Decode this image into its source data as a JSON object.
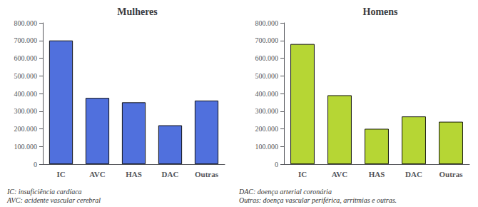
{
  "chart_data": [
    {
      "type": "bar",
      "title": "Mulheres",
      "categories": [
        "IC",
        "AVC",
        "HAS",
        "DAC",
        "Outras"
      ],
      "values": [
        700000,
        375000,
        350000,
        220000,
        360000
      ],
      "ylim": [
        0,
        800000
      ],
      "yticks": [
        0,
        {
          "value": 100000,
          "label": "100.000"
        },
        {
          "value": 200000,
          "label": "200.000"
        },
        {
          "value": 300000,
          "label": "300.000"
        },
        {
          "value": 400000,
          "label": "400.000"
        },
        {
          "value": 500000,
          "label": "500.000"
        },
        {
          "value": 600000,
          "label": "600.000"
        },
        {
          "value": 700000,
          "label": "700.000"
        },
        {
          "value": 800000,
          "label": "800.000"
        }
      ],
      "grid": false,
      "annotations": [
        "IC: insuficiência cardíaca\nAVC: acidente vascular cerebral"
      ]
    },
    {
      "type": "bar",
      "title": "Homens",
      "categories": [
        "IC",
        "AVC",
        "HAS",
        "DAC",
        "Outras"
      ],
      "values": [
        680000,
        390000,
        200000,
        270000,
        240000
      ],
      "ylim": [
        0,
        800000
      ],
      "yticks": [
        0,
        {
          "value": 100000,
          "label": "100.000"
        },
        {
          "value": 200000,
          "label": "200.000"
        },
        {
          "value": 300000,
          "label": "300.000"
        },
        {
          "value": 400000,
          "label": "400.000"
        },
        {
          "value": 500000,
          "label": "500.000"
        },
        {
          "value": 600000,
          "label": "600.000"
        },
        {
          "value": 700000,
          "label": "700.000"
        },
        {
          "value": 800000,
          "label": "800.000"
        }
      ],
      "grid": false,
      "annotations": [
        "DAC: doença arterial coronária\nOutras: doença vascular periférica, arritmias e outras."
      ]
    }
  ]
}
